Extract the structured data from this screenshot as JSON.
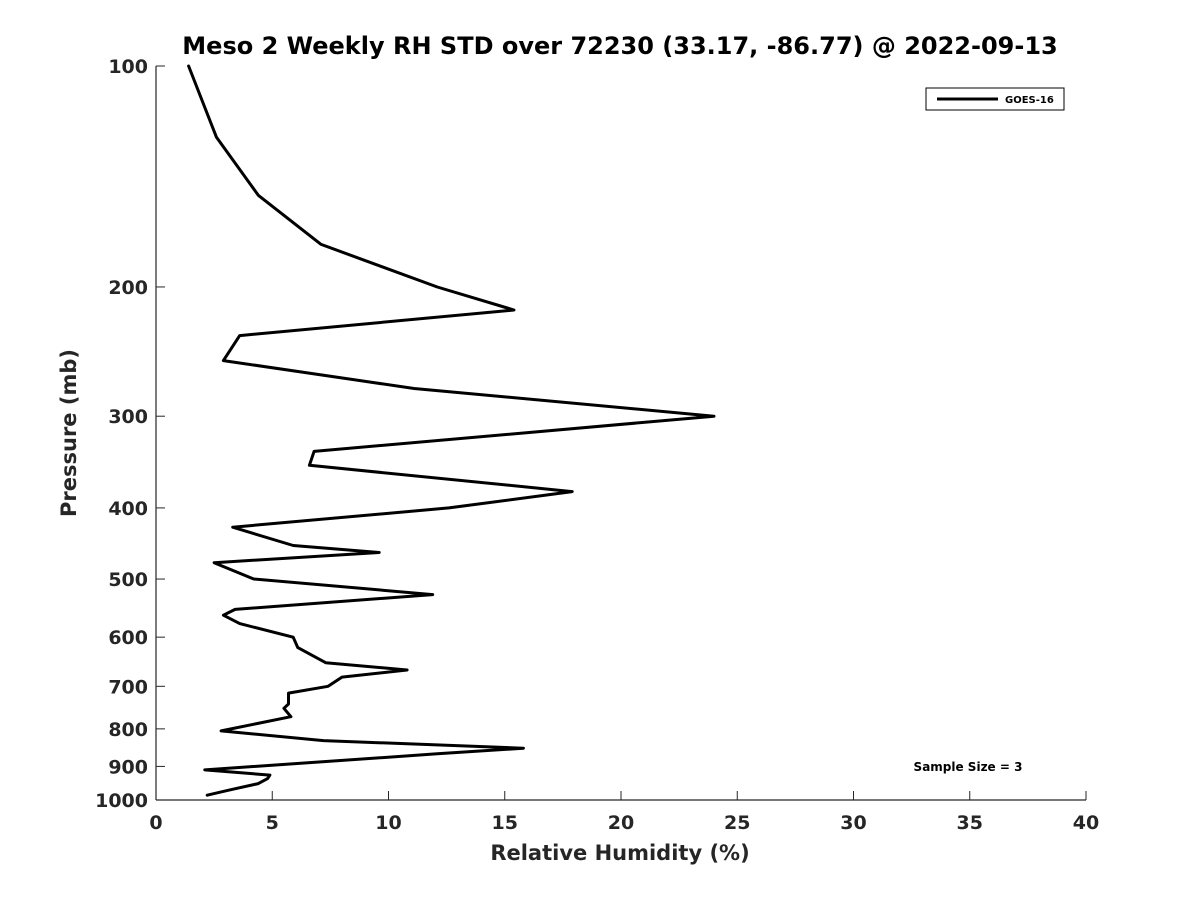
{
  "chart_data": {
    "type": "line",
    "title": "Meso 2 Weekly RH STD over 72230 (33.17, -86.77) @ 2022-09-13",
    "xlabel": "Relative Humidity (%)",
    "ylabel": "Pressure (mb)",
    "xlim": [
      0,
      40
    ],
    "ylim": [
      100,
      1000
    ],
    "yscale": "log",
    "y_reversed": true,
    "x_ticks": [
      0,
      5,
      10,
      15,
      20,
      25,
      30,
      35,
      40
    ],
    "y_ticks": [
      100,
      200,
      300,
      400,
      500,
      600,
      700,
      800,
      900,
      1000
    ],
    "grid": false,
    "legend_position": "top-right",
    "series": [
      {
        "name": "GOES-16",
        "color": "#000000",
        "points": [
          [
            1.4,
            100
          ],
          [
            2.6,
            125
          ],
          [
            4.4,
            150
          ],
          [
            7.1,
            175
          ],
          [
            12.1,
            200
          ],
          [
            15.4,
            215
          ],
          [
            3.6,
            233
          ],
          [
            2.9,
            252
          ],
          [
            11.1,
            275
          ],
          [
            24.0,
            300
          ],
          [
            6.8,
            335
          ],
          [
            6.6,
            350
          ],
          [
            17.9,
            380
          ],
          [
            12.6,
            400
          ],
          [
            3.3,
            425
          ],
          [
            5.9,
            450
          ],
          [
            9.6,
            460
          ],
          [
            2.5,
            475
          ],
          [
            4.2,
            500
          ],
          [
            11.9,
            525
          ],
          [
            3.4,
            550
          ],
          [
            2.9,
            560
          ],
          [
            3.6,
            575
          ],
          [
            5.9,
            600
          ],
          [
            6.1,
            620
          ],
          [
            7.3,
            650
          ],
          [
            10.8,
            665
          ],
          [
            8.0,
            680
          ],
          [
            7.4,
            700
          ],
          [
            5.7,
            715
          ],
          [
            5.7,
            740
          ],
          [
            5.5,
            750
          ],
          [
            5.8,
            770
          ],
          [
            2.8,
            805
          ],
          [
            7.2,
            830
          ],
          [
            15.8,
            850
          ],
          [
            12.1,
            865
          ],
          [
            2.1,
            910
          ],
          [
            4.9,
            925
          ],
          [
            4.8,
            935
          ],
          [
            4.4,
            950
          ],
          [
            3.1,
            970
          ],
          [
            2.2,
            985
          ]
        ]
      }
    ],
    "annotation": "Sample Size = 3"
  }
}
